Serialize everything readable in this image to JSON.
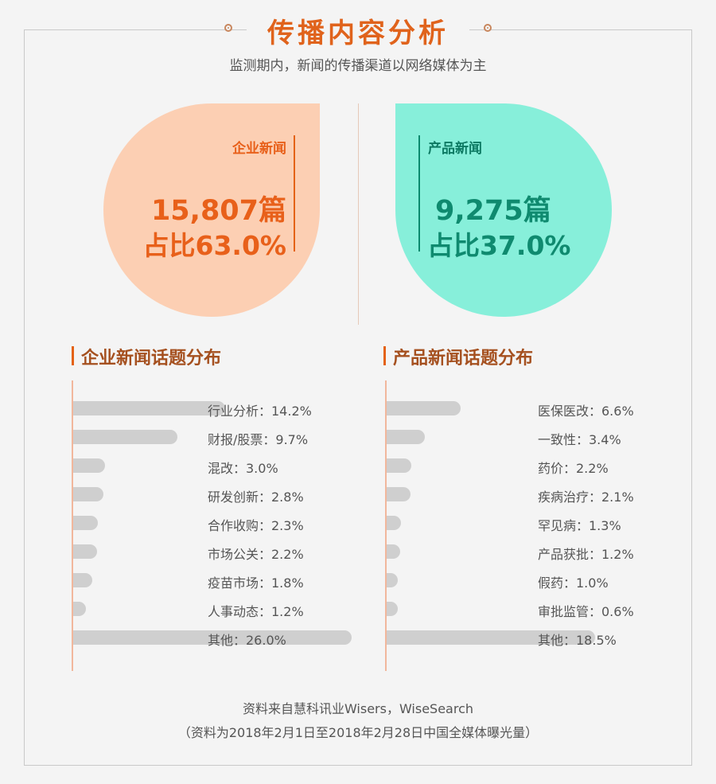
{
  "header": {
    "title": "传播内容分析",
    "subtitle": "监测期内，新闻的传播渠道以网络媒体为主"
  },
  "summary": {
    "enterprise": {
      "label": "企业新闻",
      "count": "15,807篇",
      "share": "占比63.0%",
      "color": "#fccfb3"
    },
    "product": {
      "label": "产品新闻",
      "count": "9,275篇",
      "share": "占比37.0%",
      "color": "#87efda"
    }
  },
  "sections": {
    "enterprise_title": "企业新闻话题分布",
    "product_title": "产品新闻话题分布"
  },
  "chart_data": [
    {
      "type": "bar",
      "title": "企业新闻话题分布",
      "categories": [
        "行业分析",
        "财报/股票",
        "混改",
        "研发创新",
        "合作收购",
        "市场公关",
        "疫苗市场",
        "人事动态",
        "其他"
      ],
      "values": [
        14.2,
        9.7,
        3.0,
        2.8,
        2.3,
        2.2,
        1.8,
        1.2,
        26.0
      ],
      "labels": [
        "行业分析：14.2%",
        "财报/股票：9.7%",
        "混改：3.0%",
        "研发创新：2.8%",
        "合作收购：2.3%",
        "市场公关：2.2%",
        "疫苗市场：1.8%",
        "人事动态：1.2%",
        "其他：26.0%"
      ],
      "xlim": [
        0,
        26.0
      ],
      "bar_color": "#cfcfcf"
    },
    {
      "type": "bar",
      "title": "产品新闻话题分布",
      "categories": [
        "医保医改",
        "一致性",
        "药价",
        "疾病治疗",
        "罕见病",
        "产品获批",
        "假药",
        "审批监管",
        "其他"
      ],
      "values": [
        6.6,
        3.4,
        2.2,
        2.1,
        1.3,
        1.2,
        1.0,
        0.6,
        18.5
      ],
      "labels": [
        "医保医改：6.6%",
        "一致性：3.4%",
        "药价：2.2%",
        "疾病治疗：2.1%",
        "罕见病：1.3%",
        "产品获批：1.2%",
        "假药：1.0%",
        "审批监管：0.6%",
        "其他：18.5%"
      ],
      "xlim": [
        0,
        18.5
      ],
      "bar_color": "#cfcfcf"
    }
  ],
  "footer": {
    "source": "资料来自慧科讯业Wisers，WiseSearch",
    "note": "（资料为2018年2月1日至2018年2月28日中国全媒体曝光量）"
  }
}
